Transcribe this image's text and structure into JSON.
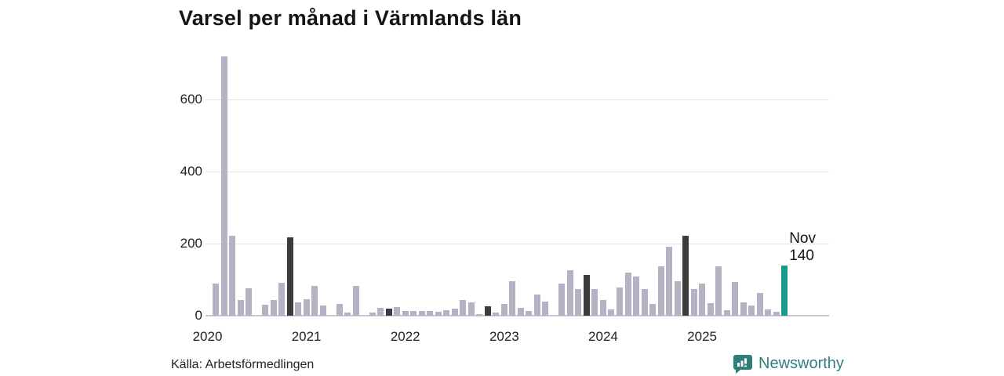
{
  "title": "Varsel per månad i Värmlands län",
  "annotation": {
    "label": "Nov",
    "value": "140"
  },
  "source": "Källa: Arbetsförmedlingen",
  "branding": {
    "name": "Newsworthy",
    "icon": "newsworthy-speech-bubble-chart-icon"
  },
  "colors": {
    "bar_default": "#b6b2c3",
    "bar_november": "#3b3b3b",
    "bar_current": "#17998b",
    "gridline": "#e3e2ea",
    "baseline": "#c9c8d2",
    "text": "#222222",
    "brand_teal": "#2e7f7a"
  },
  "chart_data": {
    "type": "bar",
    "title": "Varsel per månad i Värmlands län",
    "xlabel": "",
    "ylabel": "",
    "x_start": "2020-01",
    "x_end": "2025-11",
    "y_ticks": [
      0,
      200,
      400,
      600
    ],
    "ylim": [
      0,
      740
    ],
    "grid": "horizontal",
    "year_ticks": [
      "2020",
      "2021",
      "2022",
      "2023",
      "2024",
      "2025"
    ],
    "highlight_rule": "November bars dark; latest month teal",
    "dark_months": [
      "2020-11",
      "2021-11",
      "2022-11",
      "2023-11",
      "2024-11"
    ],
    "current_month": "2025-11",
    "current_value": 140,
    "values": [
      0,
      90,
      720,
      222,
      43,
      76,
      0,
      31,
      44,
      91,
      218,
      38,
      46,
      83,
      28,
      0,
      32,
      8,
      83,
      0,
      8,
      21,
      20,
      23,
      14,
      12,
      14,
      12,
      11,
      15,
      20,
      44,
      37,
      5,
      27,
      8,
      33,
      95,
      22,
      14,
      59,
      39,
      0,
      90,
      126,
      73,
      114,
      75,
      43,
      17,
      79,
      119,
      108,
      75,
      32,
      136,
      192,
      96,
      221,
      75,
      90,
      34,
      136,
      16,
      93,
      37,
      28,
      63,
      17,
      10,
      140
    ]
  }
}
